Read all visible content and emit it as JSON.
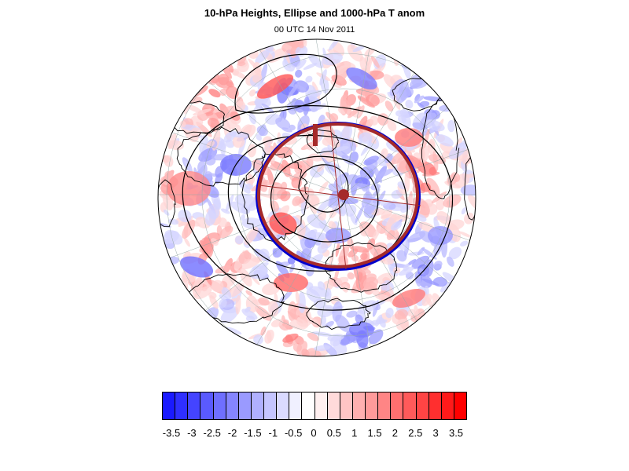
{
  "title": "10-hPa Heights, Ellipse and 1000-hPa T anom",
  "subtitle": "00 UTC 14 Nov 2011",
  "colorbar": {
    "colors": [
      "#1a1aff",
      "#2f2fff",
      "#4444ff",
      "#5a5aff",
      "#6f6fff",
      "#8585ff",
      "#9a9aff",
      "#b0b0ff",
      "#c5c5ff",
      "#dadaff",
      "#f0f0ff",
      "#ffffff",
      "#fff0f0",
      "#ffdada",
      "#ffc5c5",
      "#ffb0b0",
      "#ff9a9a",
      "#ff8585",
      "#ff6f6f",
      "#ff5a5a",
      "#ff4444",
      "#ff2f2f",
      "#ff1a1a",
      "#ff0000"
    ],
    "labels": [
      "-3.5",
      "-3",
      "-2.5",
      "-2",
      "-1.5",
      "-1",
      "-0.5",
      "0",
      "0.5",
      "1",
      "1.5",
      "2",
      "2.5",
      "3",
      "3.5"
    ]
  },
  "map": {
    "projection": "orthographic-north-polar",
    "background": "#ffffff",
    "ellipse_colors": {
      "ellipse": "#a52a2a",
      "vortex_edge": "#0000cc"
    },
    "contour_color": "#000000"
  }
}
